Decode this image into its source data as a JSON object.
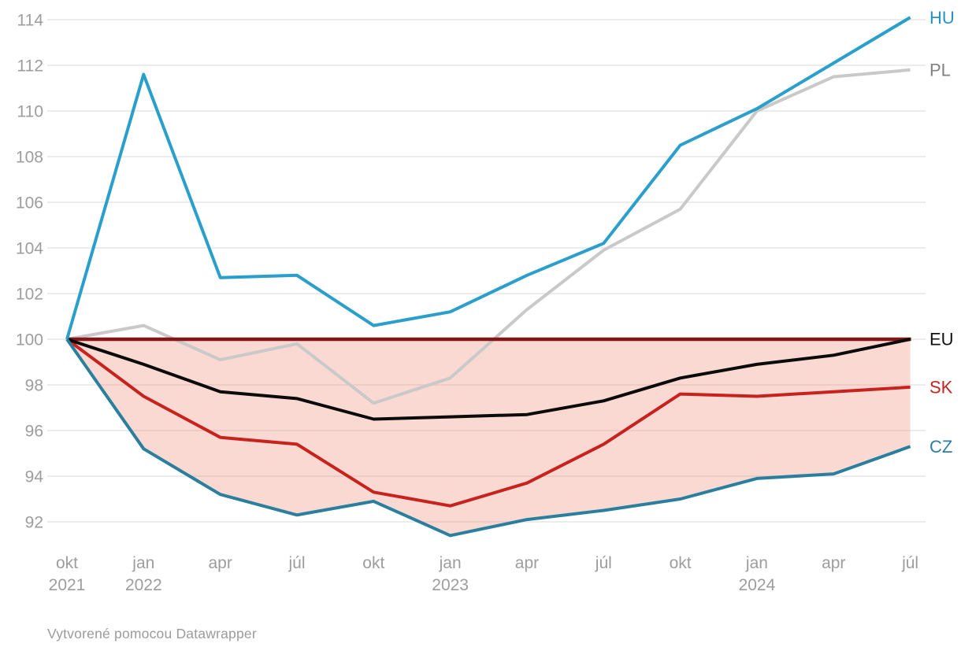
{
  "chart_data": {
    "type": "line",
    "title": "",
    "categories": [
      "okt 2021",
      "jan 2022",
      "apr 2022",
      "júl 2022",
      "okt 2022",
      "jan 2023",
      "apr 2023",
      "júl 2023",
      "okt 2023",
      "jan 2024",
      "apr 2024",
      "júl 2024"
    ],
    "x_ticks": [
      {
        "month": "okt",
        "year": "2021"
      },
      {
        "month": "jan",
        "year": "2022"
      },
      {
        "month": "apr",
        "year": ""
      },
      {
        "month": "júl",
        "year": ""
      },
      {
        "month": "okt",
        "year": ""
      },
      {
        "month": "jan",
        "year": "2023"
      },
      {
        "month": "apr",
        "year": ""
      },
      {
        "month": "júl",
        "year": ""
      },
      {
        "month": "okt",
        "year": ""
      },
      {
        "month": "jan",
        "year": "2024"
      },
      {
        "month": "apr",
        "year": ""
      },
      {
        "month": "júl",
        "year": ""
      }
    ],
    "y_ticks": [
      92,
      94,
      96,
      98,
      100,
      102,
      104,
      106,
      108,
      110,
      112,
      114
    ],
    "ylim": [
      91,
      114.8
    ],
    "grid": "horizontal",
    "legend_position": "right-edge-labels",
    "series": [
      {
        "name": "PL",
        "color": "#c9c9c9",
        "label_color": "#7f8184",
        "values": [
          100,
          100.6,
          99.1,
          99.8,
          97.2,
          98.3,
          101.3,
          103.9,
          105.7,
          110.0,
          111.5,
          111.8
        ]
      },
      {
        "name": "SK",
        "color": "#c8221f",
        "label_color": "#c8221f",
        "values": [
          100,
          97.5,
          95.7,
          95.4,
          93.3,
          92.7,
          93.7,
          95.4,
          97.6,
          97.5,
          97.7,
          97.9
        ]
      },
      {
        "name": "EU",
        "color": "#0b0b0b",
        "label_color": "#111111",
        "values": [
          100,
          98.9,
          97.7,
          97.4,
          96.5,
          96.6,
          96.7,
          97.3,
          98.3,
          98.9,
          99.3,
          100.0
        ]
      },
      {
        "name": "HU",
        "color": "#2b9fcc",
        "label_color": "#2493c4",
        "values": [
          100,
          111.6,
          102.7,
          102.8,
          100.6,
          101.2,
          102.8,
          104.2,
          108.5,
          110.1,
          112.1,
          114.1
        ]
      },
      {
        "name": "CZ",
        "color": "#2b7f9e",
        "label_color": "#2b7f9e",
        "values": [
          100,
          95.2,
          93.2,
          92.3,
          92.9,
          91.4,
          92.1,
          92.5,
          93.0,
          93.9,
          94.1,
          95.3
        ]
      }
    ],
    "baseline": {
      "value": 100,
      "color": "#841617"
    },
    "area": {
      "between": "baseline-100",
      "and": "CZ",
      "fill": "rgba(239,136,115,0.32)"
    }
  },
  "footer": {
    "text": "Vytvorené pomocou Datawrapper"
  }
}
